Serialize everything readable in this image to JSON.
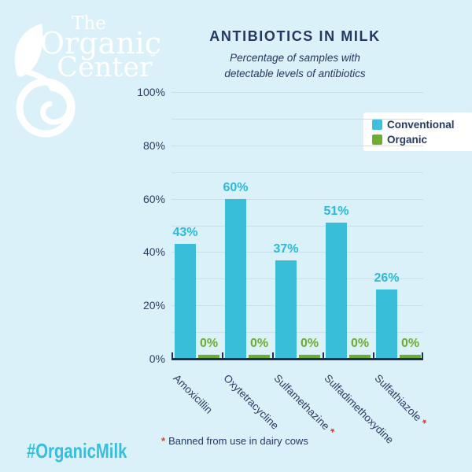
{
  "logo": {
    "line1": "The",
    "line2": "Organic",
    "line3": "Center",
    "trademark": "™",
    "color": "#ffffff"
  },
  "header": {
    "title": "ANTIBIOTICS IN MILK",
    "subtitle": "Percentage of samples with\ndetectable levels of antibiotics"
  },
  "legend": {
    "items": [
      {
        "label": "Conventional",
        "color": "#3cc0dc"
      },
      {
        "label": "Organic",
        "color": "#6cae2d"
      }
    ]
  },
  "chart_data": {
    "type": "bar",
    "title": "ANTIBIOTICS IN MILK",
    "subtitle": "Percentage of samples with detectable levels of antibiotics",
    "categories": [
      "Amoxicillin",
      "Oxytetracycline",
      "Sulfamethazine",
      "Sulfadimethoxydine",
      "Sulfathiazole"
    ],
    "banned_flags": [
      false,
      false,
      true,
      false,
      true
    ],
    "banned_mark": "*",
    "series": [
      {
        "name": "Conventional",
        "color": "#38bed9",
        "label_color": "#2cb9d8",
        "values": [
          43,
          60,
          37,
          51,
          26
        ]
      },
      {
        "name": "Organic",
        "color": "#6cae2d",
        "label_color": "#6cae2d",
        "values": [
          0,
          0,
          0,
          0,
          0
        ]
      }
    ],
    "value_suffix": "%",
    "ylim": [
      0,
      100
    ],
    "gridline_step": 10,
    "yticks_labeled": [
      0,
      20,
      40,
      60,
      80,
      100
    ],
    "ytick_suffix": "%",
    "grid": true,
    "legend_position": "top-right"
  },
  "footnote": {
    "asterisk": "*",
    "text": "Banned from use in dairy cows"
  },
  "hashtag": "#OrganicMilk",
  "colors": {
    "background": "#daf1f9",
    "navy_text": "#213861",
    "conventional_cyan": "#38bed9",
    "organic_green": "#6cae2d",
    "banned_red": "#e23b2e",
    "gridline": "#c9dfe9",
    "axis": "#1c2e52",
    "legend_background": "#ffffff",
    "hashtag_cyan": "#35bede"
  }
}
